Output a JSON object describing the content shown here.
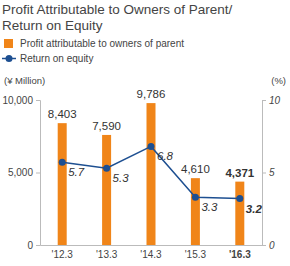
{
  "chart_data": {
    "type": "bar",
    "title": [
      "Profit Attributable to Owners of Parent/",
      "Return on Equity"
    ],
    "categories": [
      "'12.3",
      "'13.3",
      "'14.3",
      "'15.3",
      "'16.3"
    ],
    "y_label": "(¥ Million)",
    "y2_label": "(%)",
    "ylim": [
      0,
      10000
    ],
    "yticks": [
      0,
      {
        "value": 5000,
        "label": "5,000"
      },
      {
        "value": 10000,
        "label": "10,000"
      }
    ],
    "y2lim": [
      0,
      10
    ],
    "y2ticks": [
      0,
      5,
      10
    ],
    "grid": false,
    "legend": "top",
    "data_labels": true,
    "series": [
      {
        "name": "Profit attributable to owners of parent",
        "type": "bar",
        "color": "#f08519",
        "values": [
          8403,
          7590,
          9786,
          4610,
          4371
        ],
        "value_labels": [
          "8,403",
          "7,590",
          "9,786",
          "4,610",
          "4,371"
        ]
      },
      {
        "name": "Return on equity",
        "type": "line",
        "axis": "y2",
        "color": "#1d4f91",
        "marker": "circle",
        "values": [
          5.7,
          5.3,
          6.8,
          3.3,
          3.2
        ]
      }
    ]
  }
}
